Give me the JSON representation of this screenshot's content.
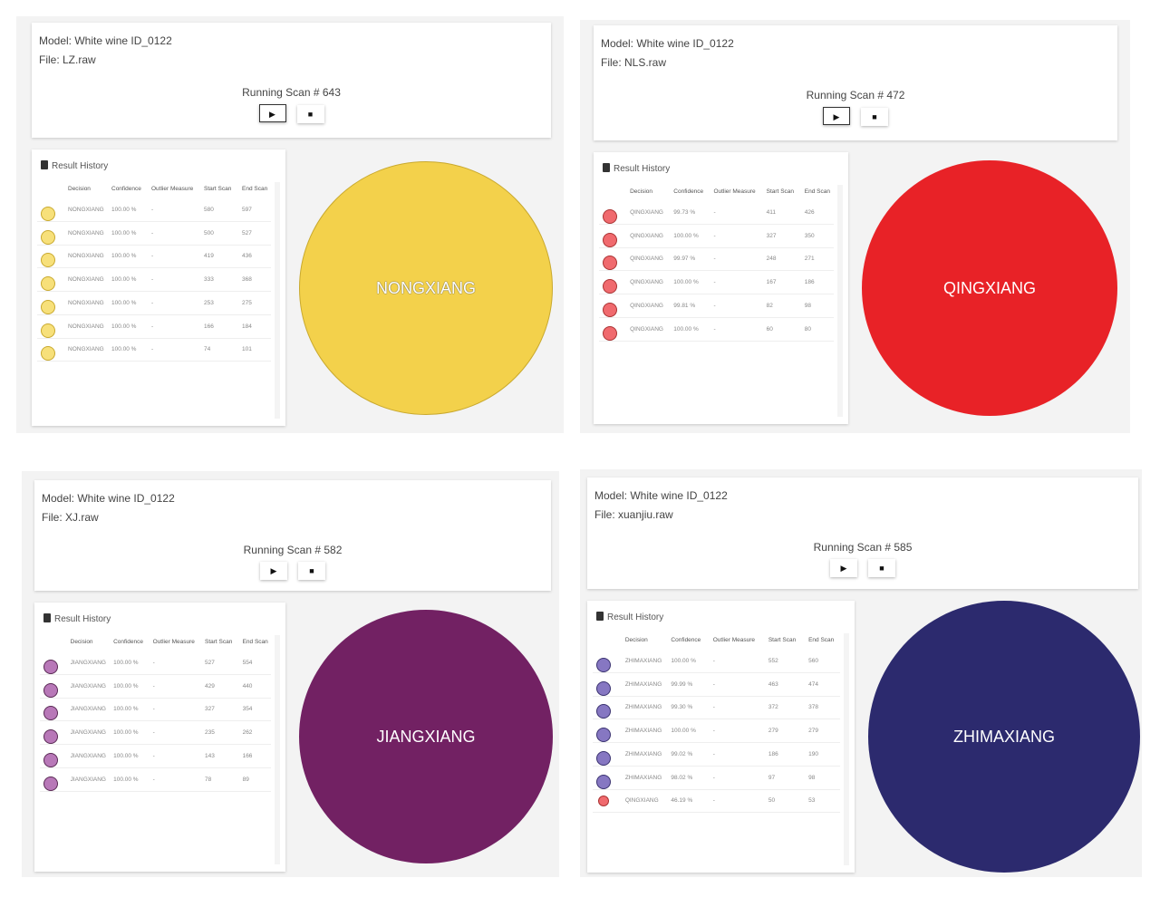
{
  "columns": [
    "Decision",
    "Confidence",
    "Outlier Measure",
    "Start Scan",
    "End Scan"
  ],
  "result_history_label": "Result History",
  "play_icon": "▶",
  "stop_icon": "■",
  "panels": [
    {
      "model": "Model: White wine ID_0122",
      "file": "File: LZ.raw",
      "running": "Running Scan # 643",
      "result": "NONGXIANG",
      "color": "#f3d14b",
      "dot": "#f7e07a",
      "dot_border": "#c9a92e",
      "text_color": "#fff",
      "outline": true,
      "play_active": true,
      "rows": [
        [
          "NONGXIANG",
          "100.00 %",
          "-",
          "580",
          "597"
        ],
        [
          "NONGXIANG",
          "100.00 %",
          "-",
          "500",
          "527"
        ],
        [
          "NONGXIANG",
          "100.00 %",
          "-",
          "419",
          "436"
        ],
        [
          "NONGXIANG",
          "100.00 %",
          "-",
          "333",
          "368"
        ],
        [
          "NONGXIANG",
          "100.00 %",
          "-",
          "253",
          "275"
        ],
        [
          "NONGXIANG",
          "100.00 %",
          "-",
          "166",
          "184"
        ],
        [
          "NONGXIANG",
          "100.00 %",
          "-",
          "74",
          "101"
        ]
      ]
    },
    {
      "model": "Model: White wine ID_0122",
      "file": "File: NLS.raw",
      "running": "Running Scan # 472",
      "result": "QINGXIANG",
      "color": "#e82227",
      "dot": "#f06a6e",
      "dot_border": "#a33",
      "text_color": "#fff",
      "outline": false,
      "play_active": true,
      "rows": [
        [
          "QINGXIANG",
          "99.73 %",
          "-",
          "411",
          "426"
        ],
        [
          "QINGXIANG",
          "100.00 %",
          "-",
          "327",
          "350"
        ],
        [
          "QINGXIANG",
          "99.97 %",
          "-",
          "248",
          "271"
        ],
        [
          "QINGXIANG",
          "100.00 %",
          "-",
          "167",
          "186"
        ],
        [
          "QINGXIANG",
          "99.81 %",
          "-",
          "82",
          "98"
        ],
        [
          "QINGXIANG",
          "100.00 %",
          "-",
          "60",
          "80"
        ]
      ]
    },
    {
      "model": "Model: White wine ID_0122",
      "file": "File: XJ.raw",
      "running": "Running Scan # 582",
      "result": "JIANGXIANG",
      "color": "#722163",
      "dot": "#b878b8",
      "dot_border": "#5a2a55",
      "text_color": "#fff",
      "outline": false,
      "play_active": false,
      "rows": [
        [
          "JIANGXIANG",
          "100.00 %",
          "-",
          "527",
          "554"
        ],
        [
          "JIANGXIANG",
          "100.00 %",
          "-",
          "429",
          "440"
        ],
        [
          "JIANGXIANG",
          "100.00 %",
          "-",
          "327",
          "354"
        ],
        [
          "JIANGXIANG",
          "100.00 %",
          "-",
          "235",
          "262"
        ],
        [
          "JIANGXIANG",
          "100.00 %",
          "-",
          "143",
          "166"
        ],
        [
          "JIANGXIANG",
          "100.00 %",
          "-",
          "78",
          "89"
        ]
      ]
    },
    {
      "model": "Model: White wine ID_0122",
      "file": "File: xuanjiu.raw",
      "running": "Running Scan # 585",
      "result": "ZHIMAXIANG",
      "color": "#2c2a6e",
      "dot": "#8677c2",
      "dot_border": "#3a3270",
      "text_color": "#fff",
      "outline": false,
      "play_active": false,
      "rows": [
        [
          "ZHIMAXIANG",
          "100.00 %",
          "-",
          "552",
          "560"
        ],
        [
          "ZHIMAXIANG",
          "99.99 %",
          "-",
          "463",
          "474"
        ],
        [
          "ZHIMAXIANG",
          "99.30 %",
          "-",
          "372",
          "378"
        ],
        [
          "ZHIMAXIANG",
          "100.00 %",
          "-",
          "279",
          "279"
        ],
        [
          "ZHIMAXIANG",
          "99.02 %",
          "-",
          "186",
          "190"
        ],
        [
          "ZHIMAXIANG",
          "98.02 %",
          "-",
          "97",
          "98"
        ],
        [
          "QINGXIANG",
          "46.19 %",
          "-",
          "50",
          "53"
        ]
      ]
    }
  ]
}
